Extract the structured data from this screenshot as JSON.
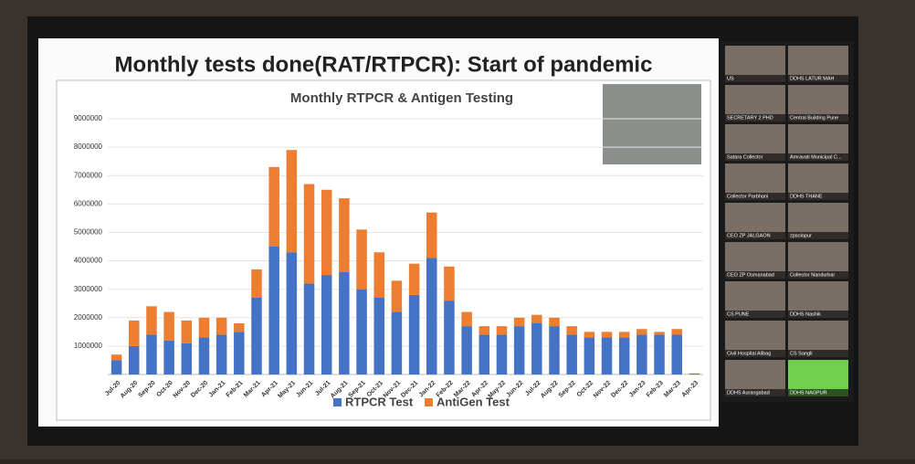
{
  "slide_title": "Monthly tests done(RAT/RTPCR): Start of pandemic",
  "chart_data": {
    "type": "stacked-bar",
    "title": "Monthly RTPCR & Antigen Testing",
    "categories": [
      "Jul-20",
      "Aug-20",
      "Sep-20",
      "Oct-20",
      "Nov-20",
      "Dec-20",
      "Jan-21",
      "Feb-21",
      "Mar-21",
      "Apr-21",
      "May-21",
      "Jun-21",
      "Jul-21",
      "Aug-21",
      "Sep-21",
      "Oct-21",
      "Nov-21",
      "Dec-21",
      "Jan-22",
      "Feb-22",
      "Mar-22",
      "Apr-22",
      "May-22",
      "Jun-22",
      "Jul-22",
      "Aug-22",
      "Sep-22",
      "Oct-22",
      "Nov-22",
      "Dec-22",
      "Jan-23",
      "Feb-23",
      "Mar-23",
      "Apr-23"
    ],
    "series": [
      {
        "name": "RTPCR Test",
        "color": "#4472c4",
        "values": [
          500000,
          1000000,
          1400000,
          1200000,
          1100000,
          1300000,
          1400000,
          1500000,
          2700000,
          4500000,
          4300000,
          3200000,
          3500000,
          3600000,
          3000000,
          2700000,
          2200000,
          2800000,
          4100000,
          2600000,
          1700000,
          1400000,
          1400000,
          1700000,
          1800000,
          1700000,
          1400000,
          1300000,
          1300000,
          1300000,
          1400000,
          1400000,
          1400000,
          30000
        ]
      },
      {
        "name": "AntiGen Test",
        "color": "#ed7d31",
        "values": [
          200000,
          900000,
          1000000,
          1000000,
          800000,
          700000,
          600000,
          300000,
          1000000,
          2800000,
          3600000,
          3500000,
          3000000,
          2600000,
          2100000,
          1600000,
          1100000,
          1100000,
          1600000,
          1200000,
          500000,
          300000,
          300000,
          300000,
          300000,
          300000,
          300000,
          200000,
          200000,
          200000,
          200000,
          100000,
          200000,
          10000
        ]
      }
    ],
    "ylim": [
      0,
      9000000
    ],
    "yticks": [
      1000000,
      2000000,
      3000000,
      4000000,
      5000000,
      6000000,
      7000000,
      8000000,
      9000000
    ],
    "legend": "bottom"
  },
  "video_tiles": [
    "US",
    "DDHS LATUR MAH",
    "SECRETARY 2 PHD",
    "Central Building Pune",
    "Satara Collector",
    "Amravati Municipal C...",
    "Collector Parbhani",
    "DDHS THANE",
    "CEO ZP JALGAON",
    "zpsolapur",
    "CEO ZP Osmanabad",
    "Collector Nandurbar",
    "CS PUNE",
    "DDHS Nashik",
    "Civil Hospital Alibag",
    "CS Sangli",
    "DDHS Aurangabad",
    "DDHS NAGPUR"
  ]
}
